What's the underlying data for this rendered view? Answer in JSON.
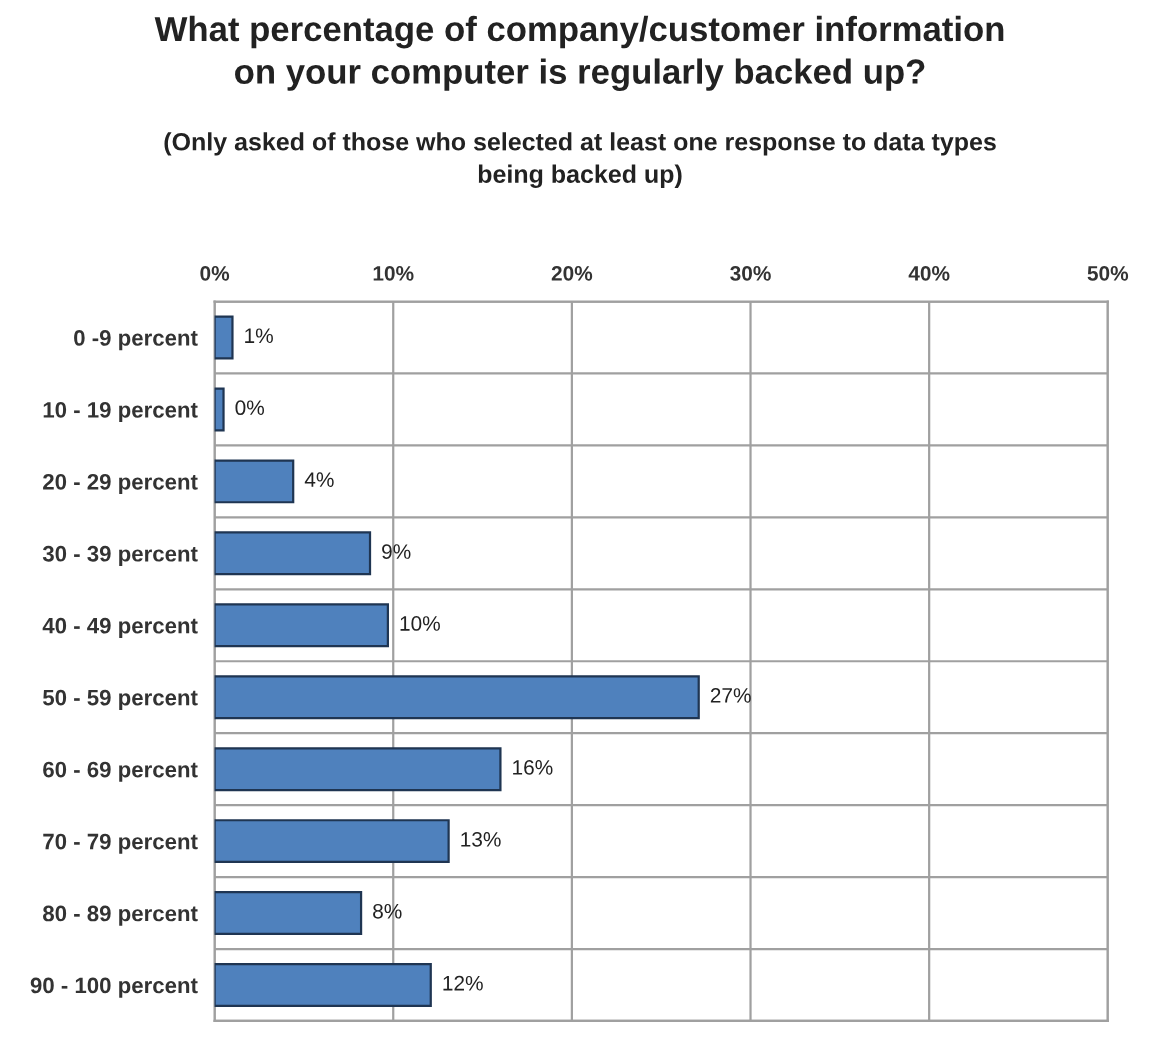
{
  "chart_data": {
    "type": "bar",
    "orientation": "horizontal",
    "title": "What percentage of company/customer information\non your computer is regularly backed up?",
    "subtitle": "(Only asked of those who selected at least one response to data types\nbeing backed up)",
    "categories": [
      "0 -9 percent",
      "10 - 19 percent",
      "20 - 29 percent",
      "30 - 39 percent",
      "40 - 49 percent",
      "50 - 59 percent",
      "60 - 69 percent",
      "70 - 79 percent",
      "80 - 89 percent",
      "90 - 100 percent"
    ],
    "values": [
      1.0,
      0.5,
      4.4,
      8.7,
      9.7,
      27.1,
      16.0,
      13.1,
      8.2,
      12.1
    ],
    "value_labels": [
      "1%",
      "0%",
      "4%",
      "9%",
      "10%",
      "27%",
      "16%",
      "13%",
      "8%",
      "12%"
    ],
    "color": "#4f81bd",
    "xlim": [
      0,
      50
    ],
    "xticks": [
      {
        "value": 0,
        "label": "0%"
      },
      {
        "value": 10,
        "label": "10%"
      },
      {
        "value": 20,
        "label": "20%"
      },
      {
        "value": 30,
        "label": "30%"
      },
      {
        "value": 40,
        "label": "40%"
      },
      {
        "value": 50,
        "label": "50%"
      }
    ],
    "grid": true
  }
}
